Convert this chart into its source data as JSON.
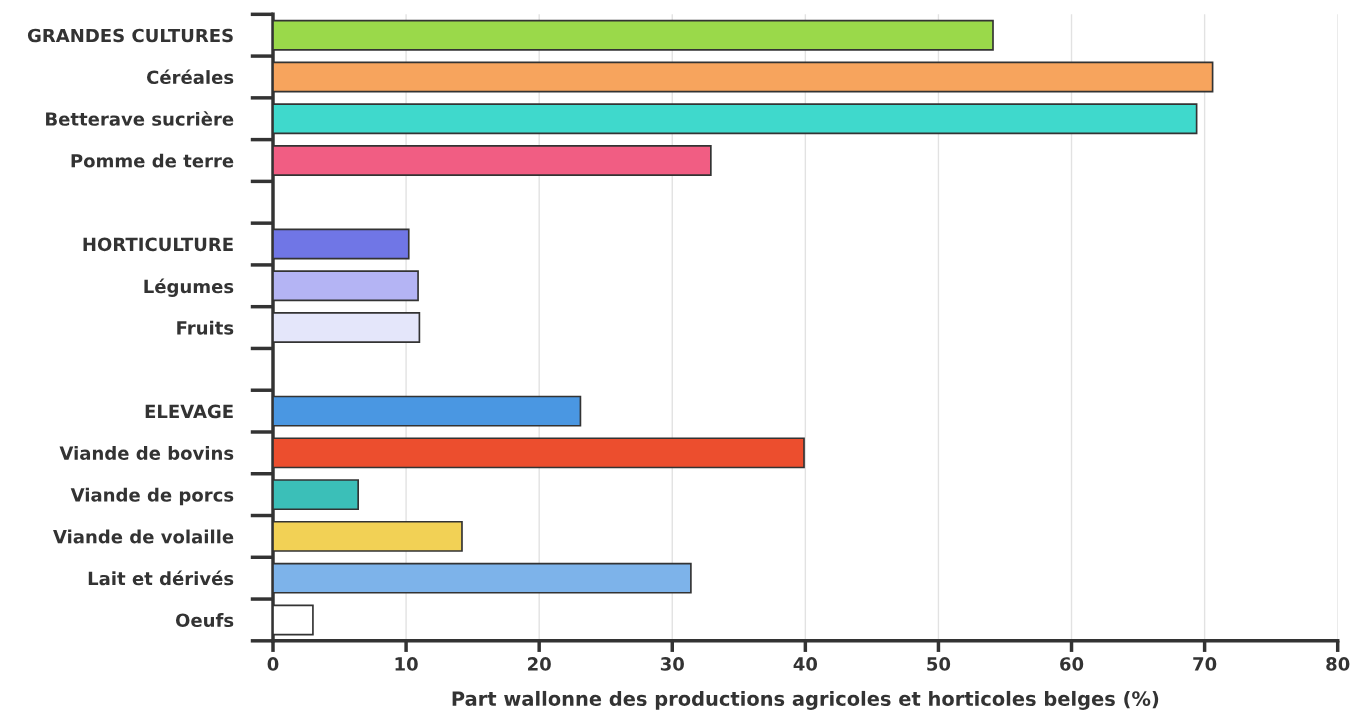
{
  "chart_data": {
    "type": "bar",
    "orientation": "horizontal",
    "categories": [
      "GRANDES CULTURES",
      "Céréales",
      "Betterave sucrière",
      "Pomme de terre",
      null,
      "HORTICULTURE",
      "Légumes",
      "Fruits",
      null,
      "ELEVAGE",
      "Viande de bovins",
      "Viande de porcs",
      "Viande de volaille",
      "Lait et dérivés",
      "Oeufs"
    ],
    "values": [
      54.1,
      70.6,
      69.4,
      32.9,
      null,
      10.2,
      10.9,
      11.0,
      null,
      23.1,
      39.9,
      6.4,
      14.2,
      31.4,
      3.0
    ],
    "colors": [
      "#9ad94a",
      "#f7a45d",
      "#3fd9cc",
      "#f15d83",
      null,
      "#7076e6",
      "#b4b4f4",
      "#e4e6fa",
      null,
      "#4a97e2",
      "#ec4e2e",
      "#3bbfb8",
      "#f2d155",
      "#7db3ea",
      "#ffffff"
    ],
    "xlim": [
      0,
      80
    ],
    "xticks": [
      0,
      10,
      20,
      30,
      40,
      50,
      60,
      70,
      80
    ],
    "xlabel": "Part wallonne des productions agricoles et horticoles belges (%)",
    "grid": "x"
  }
}
